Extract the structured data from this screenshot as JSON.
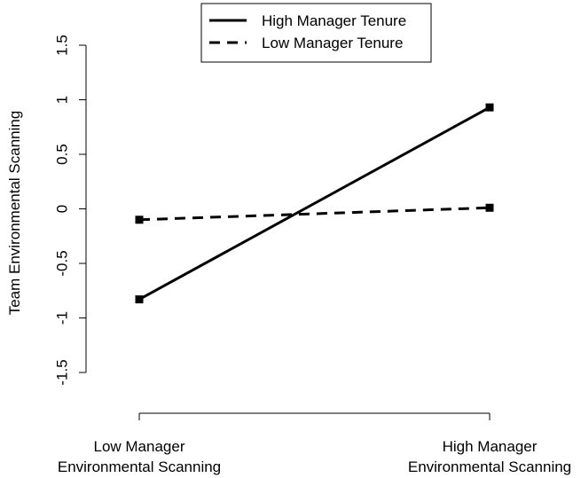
{
  "chart_data": {
    "type": "line",
    "ylabel": "Team Environmental Scanning",
    "ylim": [
      -1.5,
      1.5
    ],
    "yticks": [
      {
        "value": -1.5,
        "label": "-1.5"
      },
      {
        "value": -1,
        "label": "-1"
      },
      {
        "value": -0.5,
        "label": "-0.5"
      },
      {
        "value": 0,
        "label": "0"
      },
      {
        "value": 0.5,
        "label": "0.5"
      },
      {
        "value": 1,
        "label": "1"
      },
      {
        "value": 1.5,
        "label": "1.5"
      }
    ],
    "categories": [
      {
        "line1": "Low Manager",
        "line2": "Environmental Scanning"
      },
      {
        "line1": "High Manager",
        "line2": "Environmental Scanning"
      }
    ],
    "series": [
      {
        "name": "High Manager Tenure",
        "line_style": "solid",
        "values": [
          -0.83,
          0.93
        ]
      },
      {
        "name": "Low Manager Tenure",
        "line_style": "dashed",
        "values": [
          -0.1,
          0.01
        ]
      }
    ],
    "legend_position": "top-center",
    "grid": false,
    "line_color": "#000000"
  }
}
